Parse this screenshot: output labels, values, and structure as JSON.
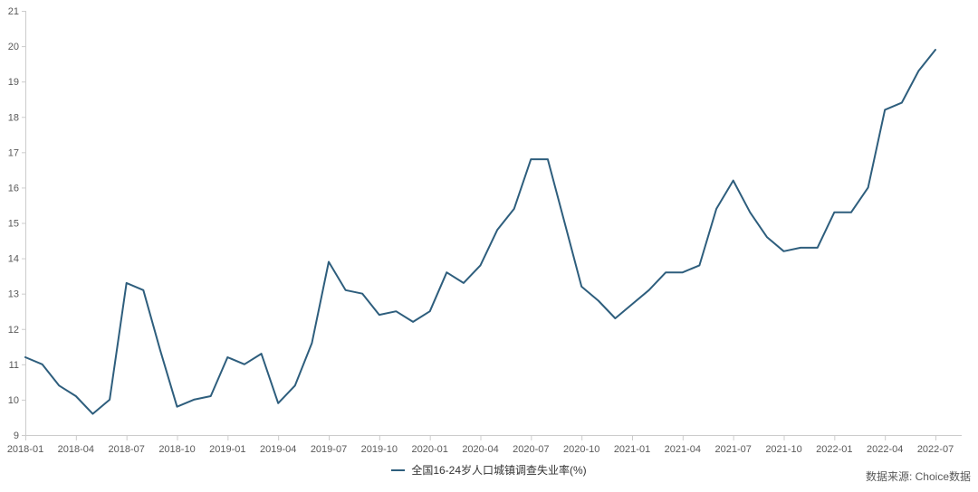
{
  "legend": {
    "label": "全国16-24岁人口城镇调查失业率(%)"
  },
  "source": {
    "text": "数据来源: Choice数据"
  },
  "colors": {
    "line": "#2e5e7d",
    "axis": "#cccccc",
    "tick_label": "#595959",
    "legend_text": "#333333",
    "source_text": "#595959",
    "background": "#ffffff"
  },
  "chart_data": {
    "type": "line",
    "title": "",
    "xlabel": "",
    "ylabel": "",
    "series_name": "全国16-24岁人口城镇调查失业率(%)",
    "x": [
      "2018-01",
      "2018-02",
      "2018-03",
      "2018-04",
      "2018-05",
      "2018-06",
      "2018-07",
      "2018-08",
      "2018-09",
      "2018-10",
      "2018-11",
      "2018-12",
      "2019-01",
      "2019-02",
      "2019-03",
      "2019-04",
      "2019-05",
      "2019-06",
      "2019-07",
      "2019-08",
      "2019-09",
      "2019-10",
      "2019-11",
      "2019-12",
      "2020-01",
      "2020-02",
      "2020-03",
      "2020-04",
      "2020-05",
      "2020-06",
      "2020-07",
      "2020-08",
      "2020-09",
      "2020-10",
      "2020-11",
      "2020-12",
      "2021-01",
      "2021-02",
      "2021-03",
      "2021-04",
      "2021-05",
      "2021-06",
      "2021-07",
      "2021-08",
      "2021-09",
      "2021-10",
      "2021-11",
      "2021-12",
      "2022-01",
      "2022-02",
      "2022-03",
      "2022-04",
      "2022-05",
      "2022-06",
      "2022-07"
    ],
    "values": [
      11.2,
      11.0,
      10.4,
      10.1,
      9.6,
      10.0,
      13.3,
      13.1,
      11.4,
      9.8,
      10.0,
      10.1,
      11.2,
      11.0,
      11.3,
      9.9,
      10.4,
      11.6,
      13.9,
      13.1,
      13.0,
      12.4,
      12.5,
      12.2,
      12.5,
      13.6,
      13.3,
      13.8,
      14.8,
      15.4,
      16.8,
      16.8,
      15.0,
      13.2,
      12.8,
      12.3,
      12.7,
      13.1,
      13.6,
      13.6,
      13.8,
      15.4,
      16.2,
      15.3,
      14.6,
      14.2,
      14.3,
      14.3,
      15.3,
      15.3,
      16.0,
      18.2,
      18.4,
      19.3,
      19.9
    ],
    "x_tick_labels": [
      "2018-01",
      "2018-04",
      "2018-07",
      "2018-10",
      "2019-01",
      "2019-04",
      "2019-07",
      "2019-10",
      "2020-01",
      "2020-04",
      "2020-07",
      "2020-10",
      "2021-01",
      "2021-04",
      "2021-07",
      "2021-10",
      "2022-01",
      "2022-04",
      "2022-07"
    ],
    "y_ticks": [
      9,
      10,
      11,
      12,
      13,
      14,
      15,
      16,
      17,
      18,
      19,
      20,
      21
    ],
    "ylim": [
      9,
      21
    ],
    "grid": false,
    "legend_position": "bottom"
  }
}
